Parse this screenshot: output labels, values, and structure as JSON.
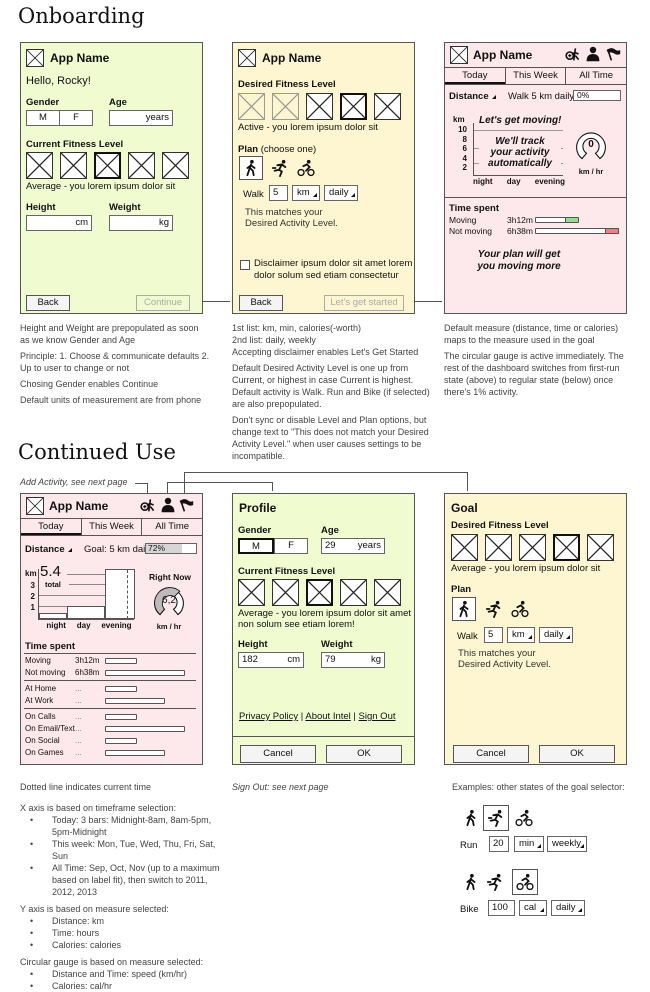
{
  "sections": {
    "onboarding": "Onboarding",
    "continued": "Continued Use"
  },
  "app_name": "App Name",
  "icons": {
    "add_activity": "add-activity-icon",
    "profile": "person-icon",
    "goal": "flag-icon",
    "walk": "walk-icon",
    "run": "run-icon",
    "bike": "bike-icon",
    "logo": "image-placeholder-icon"
  },
  "colors": {
    "green_panel": "#f0fbd0",
    "yellow_panel": "#fdf6d0",
    "pink_panel": "#fde9ec",
    "moving": "#8ee08e",
    "not_moving": "#f08080"
  },
  "screen1": {
    "greeting": "Hello, Rocky!",
    "gender_label": "Gender",
    "gender_options": [
      "M",
      "F"
    ],
    "age_label": "Age",
    "age_unit": "years",
    "fitness_label": "Current Fitness Level",
    "fitness_selected": 3,
    "fitness_desc": "Average - you lorem ipsum dolor sit",
    "height_label": "Height",
    "height_unit": "cm",
    "weight_label": "Weight",
    "weight_unit": "kg",
    "back": "Back",
    "continue": "Continue"
  },
  "screen2": {
    "desired_label": "Desired Fitness Level",
    "desired_selected": 4,
    "desired_desc": "Active - you lorem ipsum dolor sit",
    "plan_label": "Plan",
    "plan_hint": "(choose one)",
    "activity": "Walk",
    "amount": "5",
    "unit": "km",
    "period": "daily",
    "match1": "This matches your",
    "match2": "Desired Activity Level.",
    "disclaimer1": "Disclaimer ipsum dolor sit amet lorem",
    "disclaimer2": "dolor solum sed etiam consectetur",
    "disclaimer_checked": false,
    "back": "Back",
    "start": "Let's get started"
  },
  "screen3": {
    "tabs": [
      "Today",
      "This Week",
      "All Time"
    ],
    "measure": "Distance",
    "goal": "Walk 5 km daily",
    "progress": "0%",
    "y_unit": "km",
    "y_ticks": [
      "10",
      "8",
      "6",
      "4",
      "2"
    ],
    "x_labels": [
      "night",
      "day",
      "evening"
    ],
    "ann_moving": "Let's get moving!",
    "ann_track1": "We'll track",
    "ann_track2": "your activity",
    "ann_track3": "automatically",
    "gauge_value": "0",
    "gauge_unit": "km / hr",
    "time_spent": "Time spent",
    "moving_label": "Moving",
    "moving_value": "3h12m",
    "not_moving_label": "Not moving",
    "not_moving_value": "6h38m",
    "ann_plan1": "Your plan will get",
    "ann_plan2": "you moving more"
  },
  "notes1": [
    "Height and Weight are prepopulated as soon as we know Gender and Age",
    "Principle: 1. Choose & communicate defaults 2. Up to user to change or not",
    "Chosing Gender enables Continue",
    "Default units of measurement are from phone"
  ],
  "notes2": [
    "1st list: km, min, calories(-worth)",
    "2nd list: daily, weekly",
    "Accepting disclaimer enables Let's Get Started",
    "Default Desired Activity Level is one up from Current, or highest in case Current is highest. Default activity is Walk. Run and Bike (if selected) are also prepopulated.",
    "Don't sync or disable Level and Plan options, but change text to \"This does not match your Desired Activity Level.\" when user causes settings to be incompatible."
  ],
  "notes3": [
    "Default measure (distance, time or calories) maps to the measure used in the goal",
    "The circular gauge is active immediately. The rest of the dashboard switches from first-run state (above) to regular state (below) once there's 1% activity."
  ],
  "add_activity_note": "Add Activity, see next page",
  "screen4": {
    "tabs": [
      "Today",
      "This Week",
      "All Time"
    ],
    "measure": "Distance",
    "goal": "Goal: 5 km daily",
    "progress": "72%",
    "progress_value": 72,
    "y_unit": "km",
    "total_value": "5.4",
    "total_label": "total",
    "y_ticks": [
      "3",
      "2",
      "1"
    ],
    "x_labels": [
      "night",
      "day",
      "evening"
    ],
    "right_now": "Right Now",
    "gauge_value": "6,2",
    "gauge_unit": "km / hr",
    "time_spent": "Time spent",
    "rows": [
      {
        "label": "Moving",
        "value": "3h12m"
      },
      {
        "label": "Not moving",
        "value": "6h38m"
      },
      {
        "label": "At Home",
        "value": "..."
      },
      {
        "label": "At Work",
        "value": "..."
      },
      {
        "label": "On Calls",
        "value": "..."
      },
      {
        "label": "On Email/Text",
        "value": "..."
      },
      {
        "label": "On Social",
        "value": "..."
      },
      {
        "label": "On Games",
        "value": "..."
      }
    ]
  },
  "screen5": {
    "title": "Profile",
    "gender_label": "Gender",
    "gender_options": [
      "M",
      "F"
    ],
    "gender_selected": "M",
    "age_label": "Age",
    "age": "29",
    "age_unit": "years",
    "fitness_label": "Current Fitness Level",
    "fitness_selected": 3,
    "fitness_desc1": "Average - you lorem ipsum dolor sit amet",
    "fitness_desc2": "non solum see etiam lorem!",
    "height_label": "Height",
    "height": "182",
    "height_unit": "cm",
    "weight_label": "Weight",
    "weight": "79",
    "weight_unit": "kg",
    "links": [
      "Privacy Policy",
      "About Intel",
      "Sign Out"
    ],
    "cancel": "Cancel",
    "ok": "OK"
  },
  "screen6": {
    "title": "Goal",
    "desired_label": "Desired Fitness Level",
    "desired_selected": 4,
    "desc": "Average - you lorem ipsum dolor sit",
    "plan_label": "Plan",
    "activity": "Walk",
    "amount": "5",
    "unit": "km",
    "period": "daily",
    "match1": "This matches your",
    "match2": "Desired Activity Level.",
    "cancel": "Cancel",
    "ok": "OK"
  },
  "notes4": {
    "dotted": "Dotted line indicates current time",
    "x_head": "X axis is based on timeframe selection:",
    "x_items": [
      "Today: 3 bars: Midnight-8am, 8am-5pm, 5pm-Midnight",
      "This week: Mon, Tue, Wed, Thu, Fri, Sat, Sun",
      "All Time: Sep, Oct, Nov (up to a maximum based on label fit), then switch to 2011, 2012, 2013"
    ],
    "y_head": "Y axis is based on measure selected:",
    "y_items": [
      "Distance: km",
      "Time: hours",
      "Calories: calories"
    ],
    "g_head": "Circular gauge is based on measure selected:",
    "g_items": [
      "Distance and Time: speed (km/hr)",
      "Calories: cal/hr"
    ]
  },
  "notes5": "Sign Out: see next page",
  "examples": {
    "heading": "Examples: other states of the goal selector:",
    "run": {
      "activity": "Run",
      "amount": "20",
      "unit": "min",
      "period": "weekly"
    },
    "bike": {
      "activity": "Bike",
      "amount": "100",
      "unit": "cal",
      "period": "daily"
    }
  }
}
